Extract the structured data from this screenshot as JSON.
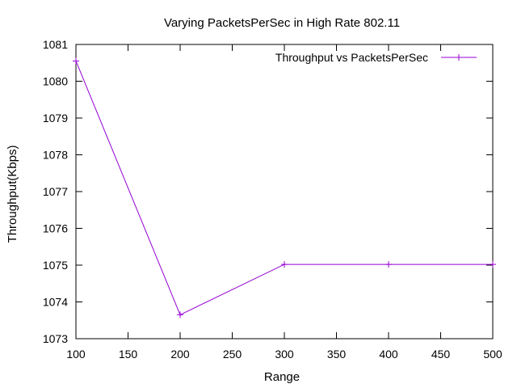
{
  "chart_data": {
    "type": "line",
    "title": "Varying PacketsPerSec in High Rate 802.11",
    "xlabel": "Range",
    "ylabel": "Throughput(Kbps)",
    "xlim": [
      100,
      500
    ],
    "ylim": [
      1073,
      1081
    ],
    "xticks": [
      100,
      150,
      200,
      250,
      300,
      350,
      400,
      450,
      500
    ],
    "yticks": [
      1073,
      1074,
      1075,
      1076,
      1077,
      1078,
      1079,
      1080,
      1081
    ],
    "grid": false,
    "legend_position": "top-right",
    "series": [
      {
        "name": "Throughput vs PacketsPerSec",
        "color": "#9400d3",
        "marker": "plus",
        "x": [
          100,
          200,
          300,
          400,
          500
        ],
        "y": [
          1080.55,
          1073.65,
          1075.02,
          1075.02,
          1075.02
        ]
      }
    ]
  }
}
